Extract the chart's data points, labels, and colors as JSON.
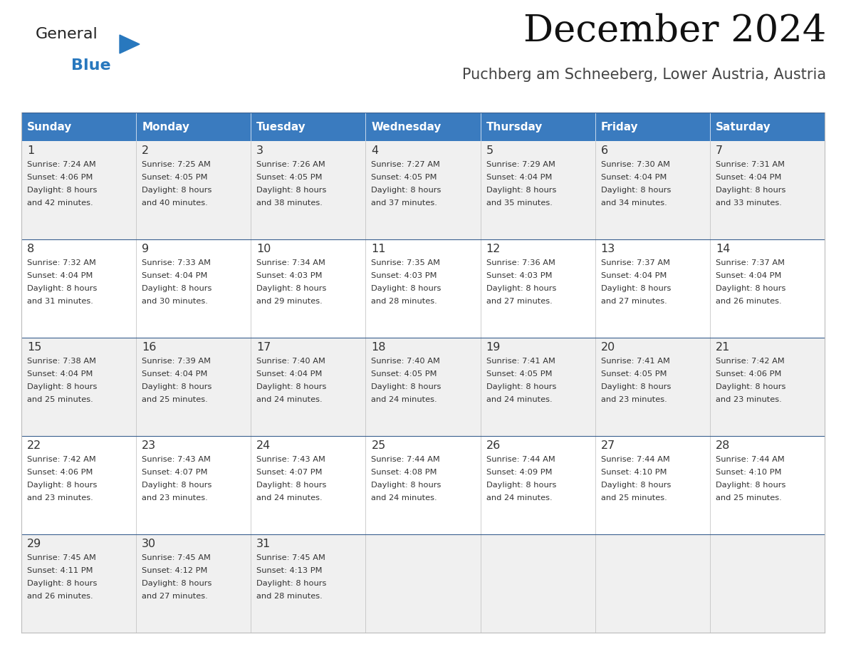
{
  "title": "December 2024",
  "subtitle": "Puchberg am Schneeberg, Lower Austria, Austria",
  "header_bg_color": "#3A7BBF",
  "header_text_color": "#FFFFFF",
  "header_days": [
    "Sunday",
    "Monday",
    "Tuesday",
    "Wednesday",
    "Thursday",
    "Friday",
    "Saturday"
  ],
  "row_bg_even": "#F0F0F0",
  "row_bg_odd": "#FFFFFF",
  "cell_text_color": "#333333",
  "grid_color": "#BBBBBB",
  "title_color": "#111111",
  "subtitle_color": "#444444",
  "logo_general_color": "#222222",
  "logo_blue_color": "#2878BE",
  "weeks": [
    [
      {
        "day": 1,
        "sunrise": "7:24 AM",
        "sunset": "4:06 PM",
        "daylight": "8 hours",
        "daylight2": "and 42 minutes."
      },
      {
        "day": 2,
        "sunrise": "7:25 AM",
        "sunset": "4:05 PM",
        "daylight": "8 hours",
        "daylight2": "and 40 minutes."
      },
      {
        "day": 3,
        "sunrise": "7:26 AM",
        "sunset": "4:05 PM",
        "daylight": "8 hours",
        "daylight2": "and 38 minutes."
      },
      {
        "day": 4,
        "sunrise": "7:27 AM",
        "sunset": "4:05 PM",
        "daylight": "8 hours",
        "daylight2": "and 37 minutes."
      },
      {
        "day": 5,
        "sunrise": "7:29 AM",
        "sunset": "4:04 PM",
        "daylight": "8 hours",
        "daylight2": "and 35 minutes."
      },
      {
        "day": 6,
        "sunrise": "7:30 AM",
        "sunset": "4:04 PM",
        "daylight": "8 hours",
        "daylight2": "and 34 minutes."
      },
      {
        "day": 7,
        "sunrise": "7:31 AM",
        "sunset": "4:04 PM",
        "daylight": "8 hours",
        "daylight2": "and 33 minutes."
      }
    ],
    [
      {
        "day": 8,
        "sunrise": "7:32 AM",
        "sunset": "4:04 PM",
        "daylight": "8 hours",
        "daylight2": "and 31 minutes."
      },
      {
        "day": 9,
        "sunrise": "7:33 AM",
        "sunset": "4:04 PM",
        "daylight": "8 hours",
        "daylight2": "and 30 minutes."
      },
      {
        "day": 10,
        "sunrise": "7:34 AM",
        "sunset": "4:03 PM",
        "daylight": "8 hours",
        "daylight2": "and 29 minutes."
      },
      {
        "day": 11,
        "sunrise": "7:35 AM",
        "sunset": "4:03 PM",
        "daylight": "8 hours",
        "daylight2": "and 28 minutes."
      },
      {
        "day": 12,
        "sunrise": "7:36 AM",
        "sunset": "4:03 PM",
        "daylight": "8 hours",
        "daylight2": "and 27 minutes."
      },
      {
        "day": 13,
        "sunrise": "7:37 AM",
        "sunset": "4:04 PM",
        "daylight": "8 hours",
        "daylight2": "and 27 minutes."
      },
      {
        "day": 14,
        "sunrise": "7:37 AM",
        "sunset": "4:04 PM",
        "daylight": "8 hours",
        "daylight2": "and 26 minutes."
      }
    ],
    [
      {
        "day": 15,
        "sunrise": "7:38 AM",
        "sunset": "4:04 PM",
        "daylight": "8 hours",
        "daylight2": "and 25 minutes."
      },
      {
        "day": 16,
        "sunrise": "7:39 AM",
        "sunset": "4:04 PM",
        "daylight": "8 hours",
        "daylight2": "and 25 minutes."
      },
      {
        "day": 17,
        "sunrise": "7:40 AM",
        "sunset": "4:04 PM",
        "daylight": "8 hours",
        "daylight2": "and 24 minutes."
      },
      {
        "day": 18,
        "sunrise": "7:40 AM",
        "sunset": "4:05 PM",
        "daylight": "8 hours",
        "daylight2": "and 24 minutes."
      },
      {
        "day": 19,
        "sunrise": "7:41 AM",
        "sunset": "4:05 PM",
        "daylight": "8 hours",
        "daylight2": "and 24 minutes."
      },
      {
        "day": 20,
        "sunrise": "7:41 AM",
        "sunset": "4:05 PM",
        "daylight": "8 hours",
        "daylight2": "and 23 minutes."
      },
      {
        "day": 21,
        "sunrise": "7:42 AM",
        "sunset": "4:06 PM",
        "daylight": "8 hours",
        "daylight2": "and 23 minutes."
      }
    ],
    [
      {
        "day": 22,
        "sunrise": "7:42 AM",
        "sunset": "4:06 PM",
        "daylight": "8 hours",
        "daylight2": "and 23 minutes."
      },
      {
        "day": 23,
        "sunrise": "7:43 AM",
        "sunset": "4:07 PM",
        "daylight": "8 hours",
        "daylight2": "and 23 minutes."
      },
      {
        "day": 24,
        "sunrise": "7:43 AM",
        "sunset": "4:07 PM",
        "daylight": "8 hours",
        "daylight2": "and 24 minutes."
      },
      {
        "day": 25,
        "sunrise": "7:44 AM",
        "sunset": "4:08 PM",
        "daylight": "8 hours",
        "daylight2": "and 24 minutes."
      },
      {
        "day": 26,
        "sunrise": "7:44 AM",
        "sunset": "4:09 PM",
        "daylight": "8 hours",
        "daylight2": "and 24 minutes."
      },
      {
        "day": 27,
        "sunrise": "7:44 AM",
        "sunset": "4:10 PM",
        "daylight": "8 hours",
        "daylight2": "and 25 minutes."
      },
      {
        "day": 28,
        "sunrise": "7:44 AM",
        "sunset": "4:10 PM",
        "daylight": "8 hours",
        "daylight2": "and 25 minutes."
      }
    ],
    [
      {
        "day": 29,
        "sunrise": "7:45 AM",
        "sunset": "4:11 PM",
        "daylight": "8 hours",
        "daylight2": "and 26 minutes."
      },
      {
        "day": 30,
        "sunrise": "7:45 AM",
        "sunset": "4:12 PM",
        "daylight": "8 hours",
        "daylight2": "and 27 minutes."
      },
      {
        "day": 31,
        "sunrise": "7:45 AM",
        "sunset": "4:13 PM",
        "daylight": "8 hours",
        "daylight2": "and 28 minutes."
      },
      null,
      null,
      null,
      null
    ]
  ]
}
